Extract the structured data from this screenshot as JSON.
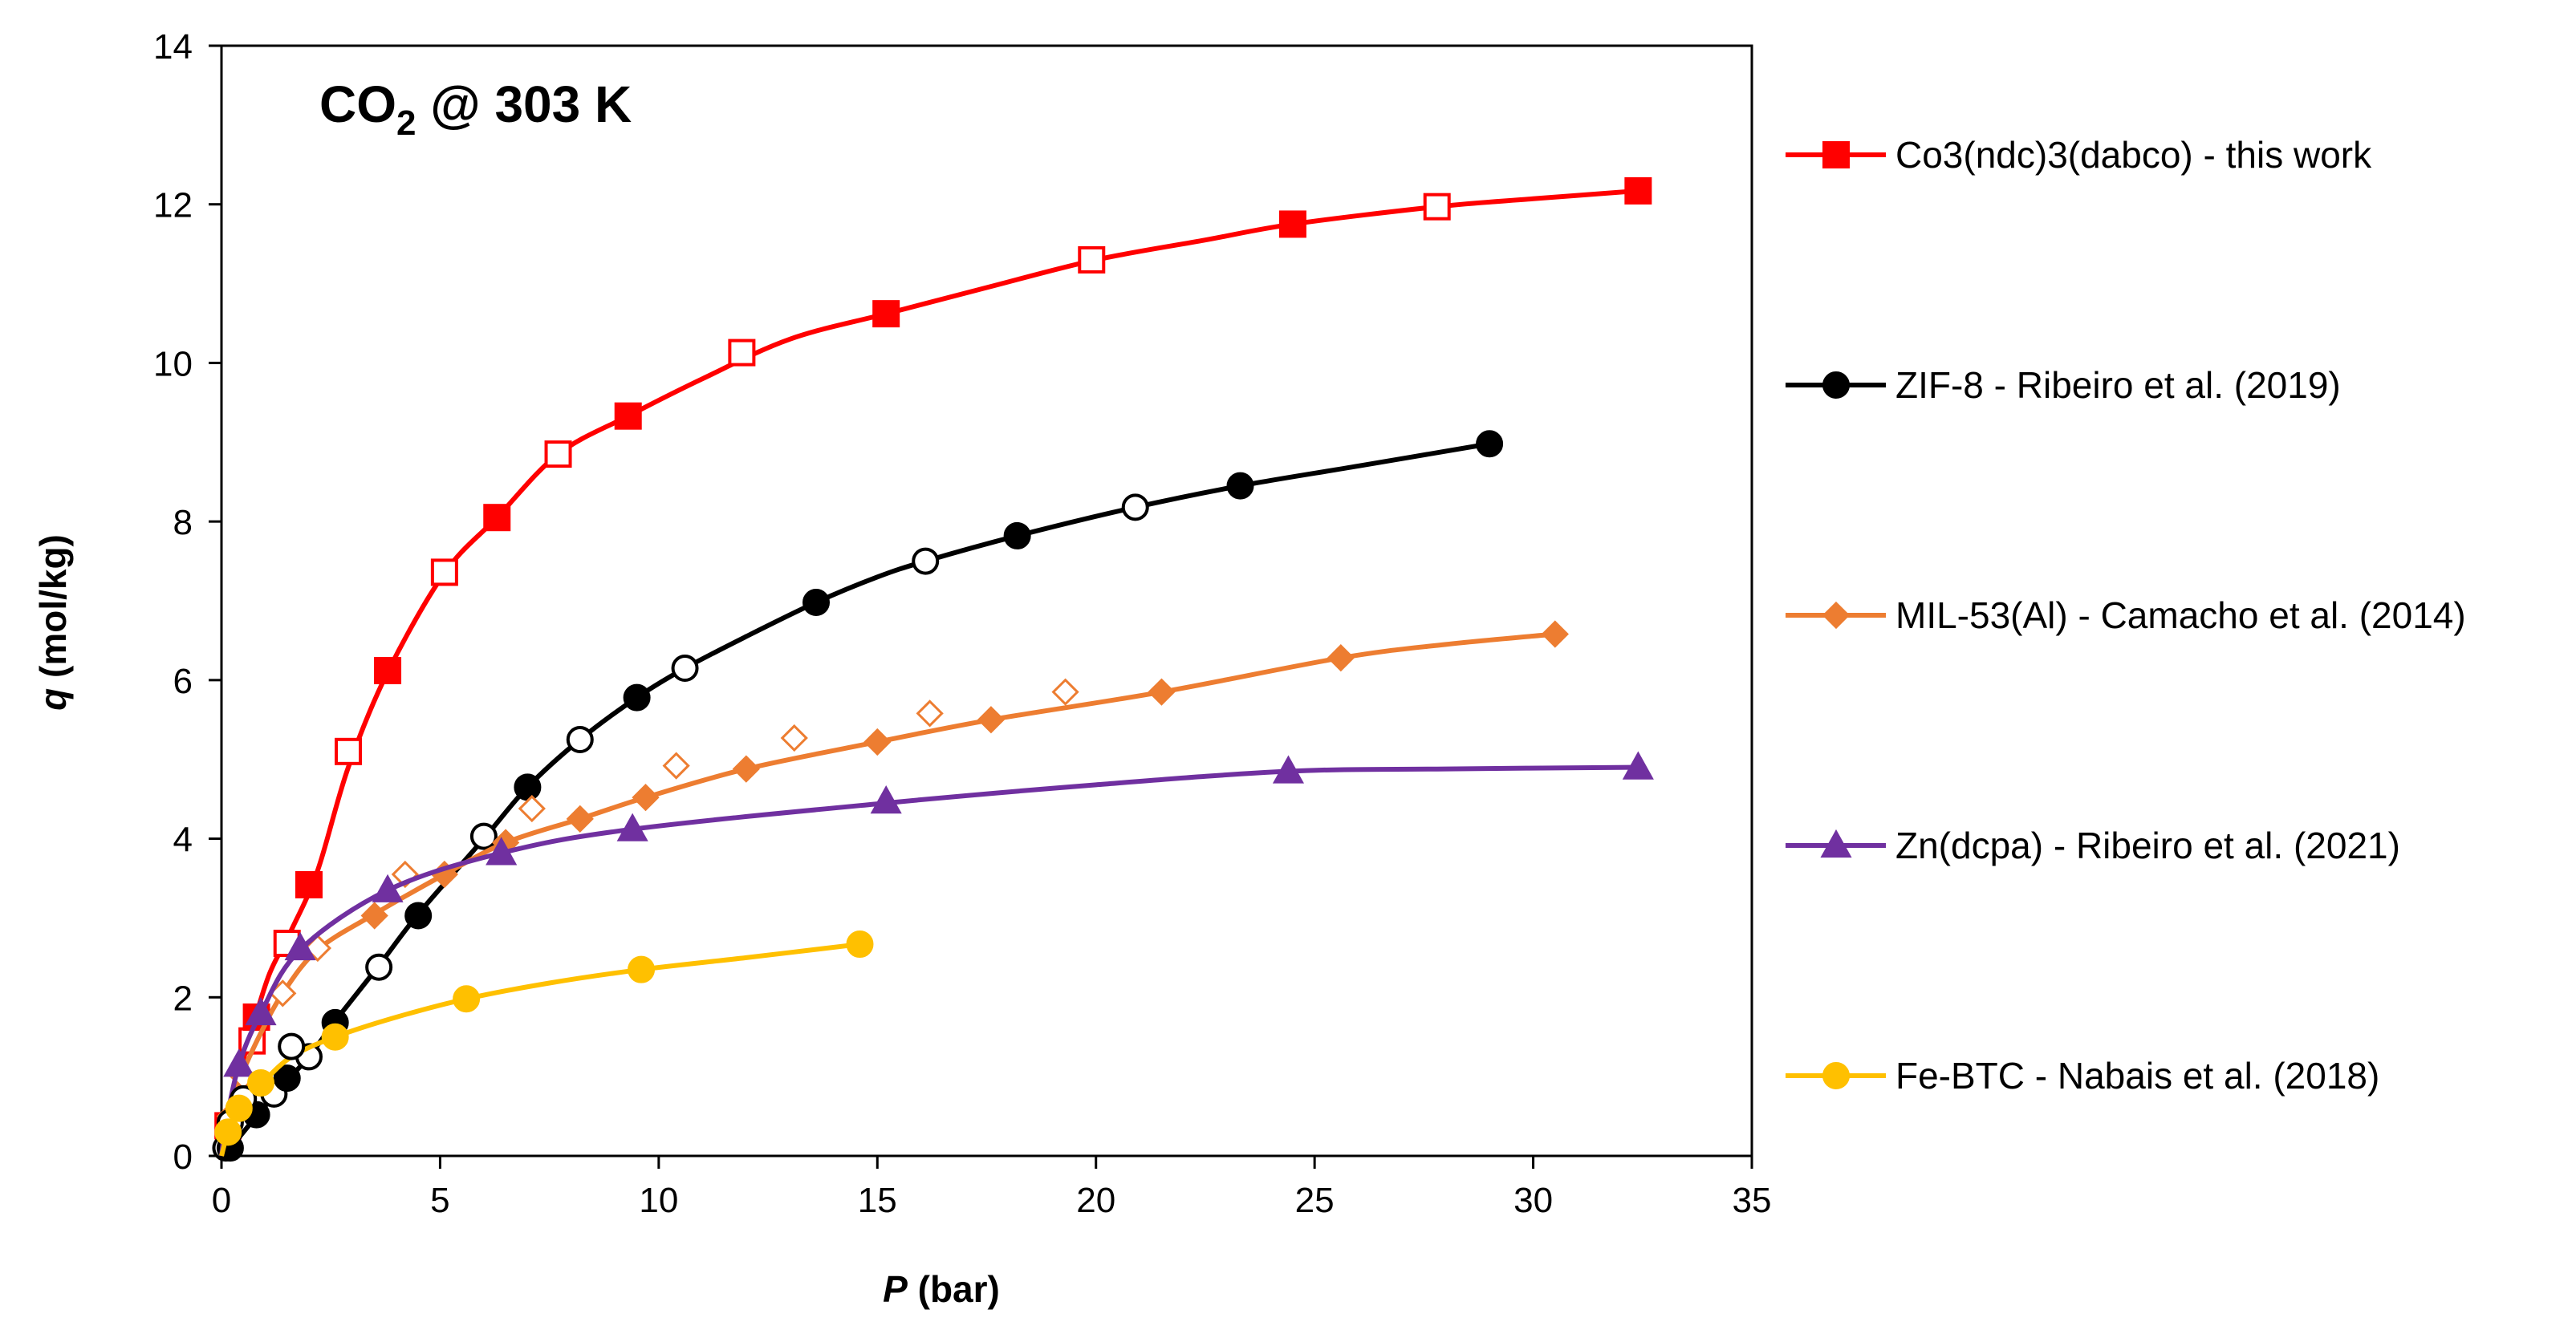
{
  "chart_data": {
    "type": "scatter",
    "title_prefix": "CO",
    "title_subscript": "2",
    "title_suffix": " @ 303 K",
    "xlabel_symbol": "P",
    "xlabel_unit": " (bar)",
    "ylabel_symbol": "q",
    "ylabel_unit": " (mol/kg)",
    "xlim": [
      0,
      35
    ],
    "ylim": [
      0,
      14
    ],
    "x_ticks": [
      0,
      5,
      10,
      15,
      20,
      25,
      30,
      35
    ],
    "y_ticks": [
      0,
      2,
      4,
      6,
      8,
      10,
      12,
      14
    ],
    "grid": false,
    "legend_position": "right",
    "series": [
      {
        "name": "Co3(ndc)3(dabco) - this work",
        "color": "#FF0000",
        "marker": "square",
        "line": [
          [
            0,
            0
          ],
          [
            0.15,
            0.38
          ],
          [
            0.35,
            0.9
          ],
          [
            0.7,
            1.6
          ],
          [
            1.1,
            2.3
          ],
          [
            1.6,
            2.85
          ],
          [
            2.2,
            3.6
          ],
          [
            2.9,
            4.9
          ],
          [
            3.8,
            6.1
          ],
          [
            5.1,
            7.35
          ],
          [
            6.3,
            8.05
          ],
          [
            7.7,
            8.85
          ],
          [
            9.3,
            9.33
          ],
          [
            11,
            9.8
          ],
          [
            13,
            10.3
          ],
          [
            15.2,
            10.62
          ],
          [
            17.5,
            10.95
          ],
          [
            20,
            11.3
          ],
          [
            22.5,
            11.55
          ],
          [
            24.5,
            11.75
          ],
          [
            27.8,
            11.97
          ],
          [
            30,
            12.07
          ],
          [
            32.4,
            12.17
          ]
        ],
        "filled": [
          [
            0.8,
            1.75
          ],
          [
            2.0,
            3.42
          ],
          [
            3.8,
            6.12
          ],
          [
            6.3,
            8.05
          ],
          [
            9.3,
            9.33
          ],
          [
            15.2,
            10.62
          ],
          [
            24.5,
            11.75
          ],
          [
            32.4,
            12.17
          ]
        ],
        "open": [
          [
            0.15,
            0.38
          ],
          [
            0.7,
            1.45
          ],
          [
            1.5,
            2.68
          ],
          [
            2.9,
            5.1
          ],
          [
            5.1,
            7.36
          ],
          [
            7.7,
            8.85
          ],
          [
            11.9,
            10.13
          ],
          [
            19.9,
            11.3
          ],
          [
            27.8,
            11.97
          ]
        ]
      },
      {
        "name": "ZIF-8 - Ribeiro et al. (2019)",
        "color": "#000000",
        "marker": "circle",
        "line": [
          [
            0,
            0
          ],
          [
            0.2,
            0.1
          ],
          [
            0.8,
            0.5
          ],
          [
            1.5,
            0.95
          ],
          [
            2,
            1.25
          ],
          [
            2.6,
            1.7
          ],
          [
            3.6,
            2.4
          ],
          [
            4.5,
            3.05
          ],
          [
            6,
            4.0
          ],
          [
            7,
            4.65
          ],
          [
            8.2,
            5.25
          ],
          [
            9.5,
            5.78
          ],
          [
            10.6,
            6.15
          ],
          [
            12,
            6.55
          ],
          [
            13.6,
            6.98
          ],
          [
            15,
            7.3
          ],
          [
            16.1,
            7.5
          ],
          [
            18.2,
            7.82
          ],
          [
            20.9,
            8.18
          ],
          [
            23.3,
            8.45
          ],
          [
            26,
            8.7
          ],
          [
            29,
            8.98
          ]
        ],
        "filled": [
          [
            0.2,
            0.1
          ],
          [
            0.8,
            0.52
          ],
          [
            1.5,
            0.98
          ],
          [
            2.6,
            1.68
          ],
          [
            4.5,
            3.03
          ],
          [
            7.0,
            4.65
          ],
          [
            9.5,
            5.78
          ],
          [
            13.6,
            6.98
          ],
          [
            18.2,
            7.82
          ],
          [
            23.3,
            8.45
          ],
          [
            29.0,
            8.98
          ]
        ],
        "open": [
          [
            0.1,
            0.1
          ],
          [
            1.2,
            0.78
          ],
          [
            2.0,
            1.25
          ],
          [
            3.6,
            2.38
          ],
          [
            6.0,
            4.03
          ],
          [
            8.2,
            5.25
          ],
          [
            10.6,
            6.15
          ],
          [
            16.1,
            7.5
          ],
          [
            20.9,
            8.18
          ]
        ]
      },
      {
        "name": "MIL-53(Al) - Camacho et al. (2014)",
        "color": "#ED7D31",
        "marker": "diamond",
        "line": [
          [
            0,
            0
          ],
          [
            0.2,
            0.5
          ],
          [
            0.45,
            1.0
          ],
          [
            0.9,
            1.55
          ],
          [
            1.4,
            2.05
          ],
          [
            2.2,
            2.6
          ],
          [
            3.5,
            3.05
          ],
          [
            5.1,
            3.55
          ],
          [
            6.5,
            3.95
          ],
          [
            8.2,
            4.25
          ],
          [
            9.7,
            4.52
          ],
          [
            12,
            4.88
          ],
          [
            15,
            5.22
          ],
          [
            17.6,
            5.5
          ],
          [
            21.5,
            5.85
          ],
          [
            25.6,
            6.28
          ],
          [
            28,
            6.45
          ],
          [
            30.5,
            6.58
          ]
        ],
        "filled": [
          [
            3.5,
            3.03
          ],
          [
            5.1,
            3.55
          ],
          [
            6.5,
            3.95
          ],
          [
            8.2,
            4.25
          ],
          [
            9.7,
            4.52
          ],
          [
            12.0,
            4.88
          ],
          [
            15.0,
            5.22
          ],
          [
            17.6,
            5.5
          ],
          [
            21.5,
            5.85
          ],
          [
            25.6,
            6.28
          ],
          [
            30.5,
            6.58
          ]
        ],
        "open": [
          [
            0.2,
            0.5
          ],
          [
            0.5,
            1.0
          ],
          [
            1.4,
            2.05
          ],
          [
            2.2,
            2.62
          ],
          [
            4.2,
            3.55
          ],
          [
            7.1,
            4.38
          ],
          [
            10.4,
            4.92
          ],
          [
            13.1,
            5.27
          ],
          [
            16.2,
            5.58
          ],
          [
            19.3,
            5.85
          ]
        ]
      },
      {
        "name": "Zn(dcpa) - Ribeiro et al. (2021)",
        "color": "#7030A0",
        "marker": "triangle",
        "line": [
          [
            0,
            0
          ],
          [
            0.1,
            0.4
          ],
          [
            0.4,
            1.15
          ],
          [
            0.9,
            1.8
          ],
          [
            1.8,
            2.6
          ],
          [
            3.8,
            3.35
          ],
          [
            6.4,
            3.82
          ],
          [
            9.4,
            4.12
          ],
          [
            15.2,
            4.45
          ],
          [
            20,
            4.68
          ],
          [
            24.4,
            4.85
          ],
          [
            28,
            4.88
          ],
          [
            32.4,
            4.9
          ]
        ],
        "filled": [
          [
            0.4,
            1.15
          ],
          [
            0.9,
            1.8
          ],
          [
            1.8,
            2.62
          ],
          [
            3.8,
            3.35
          ],
          [
            6.4,
            3.82
          ],
          [
            9.4,
            4.12
          ],
          [
            15.2,
            4.47
          ],
          [
            24.4,
            4.85
          ],
          [
            32.4,
            4.9
          ]
        ],
        "open": []
      },
      {
        "name": "Fe-BTC - Nabais et al. (2018)",
        "color": "#FFC000",
        "marker": "circle",
        "line": [
          [
            0,
            0
          ],
          [
            0.15,
            0.3
          ],
          [
            0.4,
            0.6
          ],
          [
            0.9,
            0.9
          ],
          [
            1.6,
            1.25
          ],
          [
            2.6,
            1.5
          ],
          [
            4,
            1.75
          ],
          [
            5.6,
            1.98
          ],
          [
            7.5,
            2.18
          ],
          [
            9.6,
            2.35
          ],
          [
            12,
            2.5
          ],
          [
            14.6,
            2.67
          ]
        ],
        "filled": [
          [
            0.15,
            0.3
          ],
          [
            0.4,
            0.6
          ],
          [
            0.9,
            0.92
          ],
          [
            2.6,
            1.5
          ],
          [
            5.6,
            1.98
          ],
          [
            9.6,
            2.35
          ],
          [
            14.6,
            2.67
          ]
        ],
        "open": [
          [
            0.2,
            0.42
          ],
          [
            0.5,
            0.72
          ],
          [
            1.6,
            1.38
          ]
        ]
      }
    ]
  }
}
